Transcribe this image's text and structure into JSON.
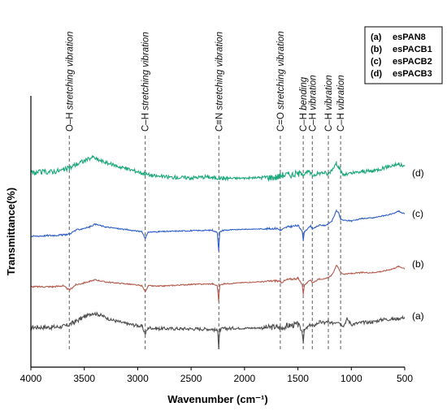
{
  "chart_data": {
    "type": "line",
    "xlabel": "Wavenumber (cm⁻¹)",
    "ylabel": "Transmittance(%)",
    "xlim": [
      4000,
      500
    ],
    "x_reversed": true,
    "x_ticks": [
      4000,
      3500,
      3000,
      2500,
      2000,
      1500,
      1000,
      500
    ],
    "grid": false,
    "legend_position": "top-right",
    "legend": [
      {
        "key": "(a)",
        "name": "esPAN8"
      },
      {
        "key": "(b)",
        "name": "esPACB1"
      },
      {
        "key": "(c)",
        "name": "esPACB2"
      },
      {
        "key": "(d)",
        "name": "esPACB3"
      }
    ],
    "annotations": [
      {
        "x": 3640,
        "label_prefix": "O–H ",
        "label_rest": "stretching vibration"
      },
      {
        "x": 2930,
        "label_prefix": "C–H ",
        "label_rest": "stretching vibration"
      },
      {
        "x": 2240,
        "label_prefix": "C≡N ",
        "label_rest": "stretching vibration"
      },
      {
        "x": 1665,
        "label_prefix": "C=O ",
        "label_rest": "stretching vibration"
      },
      {
        "x": 1450,
        "label_prefix": "C–H ",
        "label_rest": "bending"
      },
      {
        "x": 1365,
        "label_prefix": "C–H ",
        "label_rest": "vibration"
      },
      {
        "x": 1215,
        "label_prefix": "C–H ",
        "label_rest": "vibration"
      },
      {
        "x": 1100,
        "label_prefix": "C–H ",
        "label_rest": "vibration"
      }
    ],
    "series": [
      {
        "label": "(a)",
        "color": "#4d4d4d",
        "noise": 0.35,
        "points": [
          [
            4000,
            0.2
          ],
          [
            3800,
            0.2
          ],
          [
            3680,
            0.4
          ],
          [
            3600,
            1.2
          ],
          [
            3500,
            2.4
          ],
          [
            3420,
            3.2
          ],
          [
            3350,
            2.8
          ],
          [
            3250,
            1.8
          ],
          [
            3100,
            0.9
          ],
          [
            2960,
            0.4
          ],
          [
            2930,
            -1.2
          ],
          [
            2900,
            0.1
          ],
          [
            2800,
            -0.1
          ],
          [
            2600,
            -0.1
          ],
          [
            2300,
            -0.2
          ],
          [
            2250,
            -0.6
          ],
          [
            2242,
            -4.3
          ],
          [
            2232,
            -0.4
          ],
          [
            2200,
            -0.1
          ],
          [
            2000,
            0.0
          ],
          [
            1800,
            0.1
          ],
          [
            1700,
            0.3
          ],
          [
            1660,
            0.0
          ],
          [
            1600,
            0.5
          ],
          [
            1500,
            0.8
          ],
          [
            1460,
            -0.8
          ],
          [
            1450,
            -2.9
          ],
          [
            1440,
            -0.5
          ],
          [
            1380,
            0.8
          ],
          [
            1365,
            0.3
          ],
          [
            1300,
            1.3
          ],
          [
            1250,
            1.1
          ],
          [
            1220,
            1.4
          ],
          [
            1200,
            0.9
          ],
          [
            1120,
            1.5
          ],
          [
            1100,
            0.8
          ],
          [
            1070,
            0.6
          ],
          [
            1040,
            2.0
          ],
          [
            1000,
            0.8
          ],
          [
            900,
            1.2
          ],
          [
            800,
            1.3
          ],
          [
            700,
            1.9
          ],
          [
            600,
            1.9
          ],
          [
            500,
            2.3
          ]
        ]
      },
      {
        "label": "(b)",
        "color": "#b35a4c",
        "noise": 0.12,
        "points": [
          [
            4000,
            0.0
          ],
          [
            3800,
            0.0
          ],
          [
            3700,
            0.2
          ],
          [
            3640,
            -0.7
          ],
          [
            3580,
            0.4
          ],
          [
            3450,
            1.1
          ],
          [
            3400,
            1.5
          ],
          [
            3300,
            1.0
          ],
          [
            3100,
            0.6
          ],
          [
            2960,
            0.2
          ],
          [
            2930,
            -1.0
          ],
          [
            2900,
            0.2
          ],
          [
            2800,
            0.1
          ],
          [
            2500,
            0.5
          ],
          [
            2300,
            0.6
          ],
          [
            2255,
            0.2
          ],
          [
            2242,
            -3.1
          ],
          [
            2232,
            0.3
          ],
          [
            2200,
            0.6
          ],
          [
            2000,
            0.9
          ],
          [
            1800,
            1.1
          ],
          [
            1700,
            1.3
          ],
          [
            1660,
            0.9
          ],
          [
            1600,
            1.5
          ],
          [
            1500,
            1.8
          ],
          [
            1460,
            0.5
          ],
          [
            1450,
            -1.6
          ],
          [
            1440,
            0.3
          ],
          [
            1380,
            1.5
          ],
          [
            1365,
            0.8
          ],
          [
            1300,
            1.7
          ],
          [
            1250,
            1.6
          ],
          [
            1220,
            1.9
          ],
          [
            1180,
            2.5
          ],
          [
            1140,
            4.5
          ],
          [
            1120,
            4.0
          ],
          [
            1100,
            3.0
          ],
          [
            1070,
            2.7
          ],
          [
            1000,
            2.8
          ],
          [
            900,
            3.0
          ],
          [
            800,
            3.0
          ],
          [
            700,
            3.3
          ],
          [
            600,
            3.9
          ],
          [
            560,
            4.3
          ],
          [
            500,
            3.9
          ]
        ]
      },
      {
        "label": "(c)",
        "color": "#2f5ec8",
        "noise": 0.12,
        "points": [
          [
            4000,
            0.0
          ],
          [
            3800,
            0.2
          ],
          [
            3700,
            0.3
          ],
          [
            3640,
            0.5
          ],
          [
            3580,
            1.3
          ],
          [
            3450,
            2.0
          ],
          [
            3400,
            2.6
          ],
          [
            3300,
            2.0
          ],
          [
            3100,
            1.4
          ],
          [
            2960,
            1.0
          ],
          [
            2930,
            -0.4
          ],
          [
            2900,
            0.9
          ],
          [
            2800,
            1.0
          ],
          [
            2500,
            1.2
          ],
          [
            2300,
            1.3
          ],
          [
            2255,
            0.8
          ],
          [
            2242,
            -3.0
          ],
          [
            2232,
            0.9
          ],
          [
            2200,
            1.3
          ],
          [
            2000,
            1.5
          ],
          [
            1800,
            1.6
          ],
          [
            1700,
            1.7
          ],
          [
            1660,
            1.3
          ],
          [
            1600,
            2.0
          ],
          [
            1500,
            2.3
          ],
          [
            1460,
            1.2
          ],
          [
            1450,
            -0.9
          ],
          [
            1440,
            1.0
          ],
          [
            1380,
            2.2
          ],
          [
            1365,
            1.6
          ],
          [
            1300,
            2.4
          ],
          [
            1250,
            2.3
          ],
          [
            1220,
            2.6
          ],
          [
            1180,
            3.3
          ],
          [
            1140,
            5.5
          ],
          [
            1120,
            5.0
          ],
          [
            1100,
            3.6
          ],
          [
            1070,
            3.4
          ],
          [
            1000,
            3.3
          ],
          [
            900,
            3.8
          ],
          [
            800,
            3.9
          ],
          [
            700,
            4.4
          ],
          [
            600,
            4.8
          ],
          [
            560,
            5.4
          ],
          [
            500,
            4.7
          ]
        ]
      },
      {
        "label": "(d)",
        "color": "#1aa87a",
        "noise": 0.4,
        "points": [
          [
            4000,
            0.0
          ],
          [
            3900,
            0.2
          ],
          [
            3800,
            0.3
          ],
          [
            3700,
            0.6
          ],
          [
            3640,
            1.0
          ],
          [
            3580,
            1.8
          ],
          [
            3500,
            2.6
          ],
          [
            3420,
            3.4
          ],
          [
            3380,
            2.9
          ],
          [
            3300,
            2.2
          ],
          [
            3150,
            1.2
          ],
          [
            3000,
            0.3
          ],
          [
            2930,
            -0.2
          ],
          [
            2850,
            -0.6
          ],
          [
            2700,
            -0.9
          ],
          [
            2500,
            -1.0
          ],
          [
            2350,
            -0.8
          ],
          [
            2300,
            -1.0
          ],
          [
            2200,
            -1.1
          ],
          [
            2000,
            -1.1
          ],
          [
            1800,
            -0.9
          ],
          [
            1700,
            -0.9
          ],
          [
            1650,
            -0.4
          ],
          [
            1550,
            -0.3
          ],
          [
            1460,
            0.0
          ],
          [
            1450,
            -0.4
          ],
          [
            1400,
            0.3
          ],
          [
            1365,
            -0.5
          ],
          [
            1300,
            0.0
          ],
          [
            1250,
            0.1
          ],
          [
            1220,
            -0.3
          ],
          [
            1180,
            0.8
          ],
          [
            1140,
            2.1
          ],
          [
            1120,
            1.4
          ],
          [
            1100,
            0.4
          ],
          [
            1070,
            -0.4
          ],
          [
            1000,
            -0.1
          ],
          [
            900,
            0.3
          ],
          [
            800,
            0.4
          ],
          [
            700,
            1.1
          ],
          [
            600,
            1.7
          ],
          [
            560,
            1.9
          ],
          [
            500,
            1.3
          ]
        ]
      }
    ]
  }
}
